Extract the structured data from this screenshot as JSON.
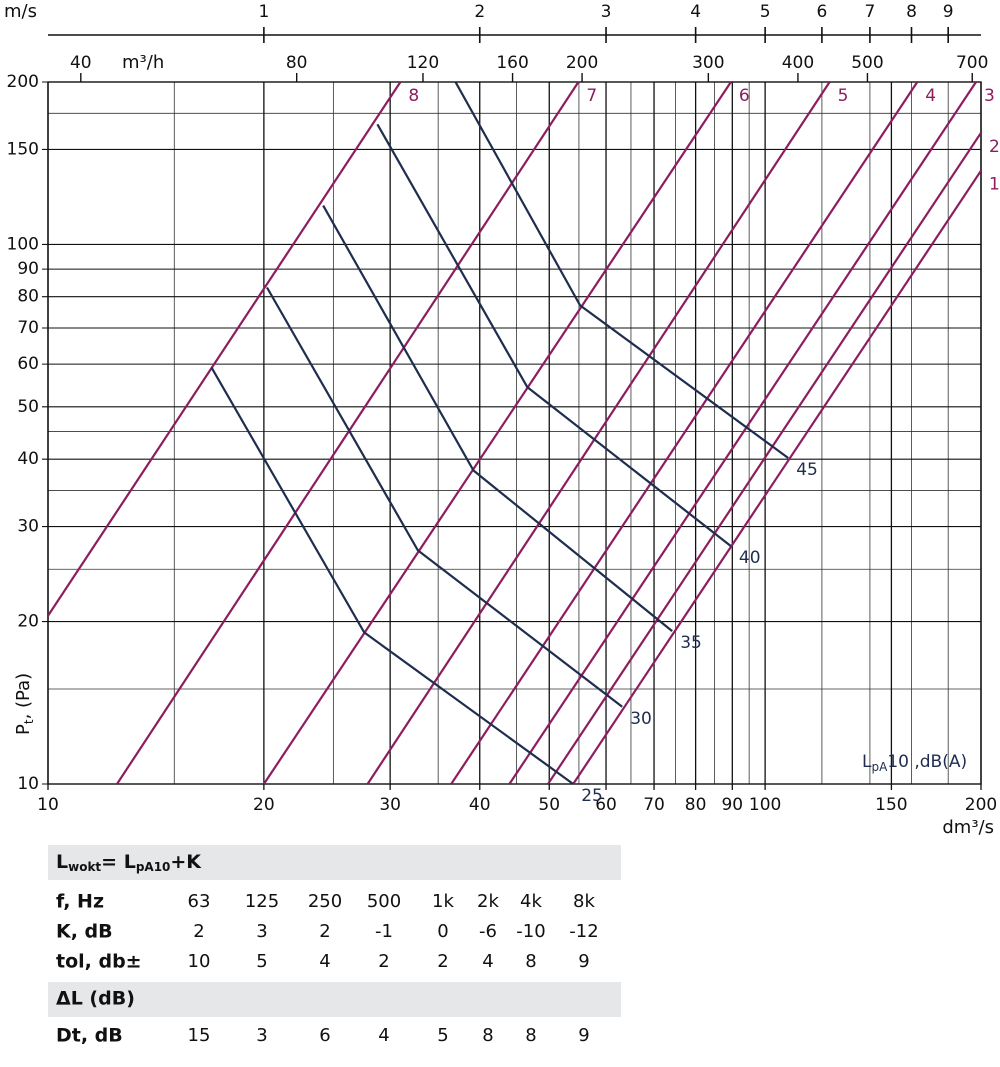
{
  "chart_data": {
    "type": "line",
    "log_x": true,
    "log_y": true,
    "grid": true,
    "xlabel": "dm³/s",
    "ylabel": [
      {
        "text": "P"
      },
      {
        "text": "t",
        "sub": true
      },
      {
        "text": ", (Pa)"
      }
    ],
    "note": [
      {
        "text": "L"
      },
      {
        "text": "pA",
        "sub": true
      },
      {
        "text": "10 ,dB(A)"
      }
    ],
    "xlim": [
      10,
      200
    ],
    "ylim": [
      10,
      200
    ],
    "xticks": [
      10,
      20,
      30,
      40,
      50,
      60,
      70,
      80,
      90,
      100,
      150,
      200
    ],
    "yticks": [
      10,
      20,
      30,
      40,
      50,
      60,
      70,
      80,
      90,
      100,
      150,
      200
    ],
    "xgrid_minor": [
      15,
      25,
      35,
      45,
      55,
      65,
      75,
      85,
      95,
      120,
      140,
      160,
      180
    ],
    "ygrid_minor": [
      15,
      25,
      35,
      45,
      175
    ],
    "top_axes": [
      {
        "label": "m/s",
        "xlim": [
          0.5,
          10
        ],
        "ticks": [
          1,
          2,
          3,
          4,
          5,
          6,
          7,
          8,
          9
        ]
      },
      {
        "label": "m³/h",
        "xlim": [
          36,
          720
        ],
        "ticks": [
          40,
          80,
          120,
          160,
          200,
          300,
          400,
          500,
          700
        ]
      }
    ],
    "series": [
      {
        "name": "8",
        "color": "#8c1d5e",
        "x": [
          10,
          31.0
        ],
        "values": [
          20.5,
          200
        ]
      },
      {
        "name": "7",
        "color": "#8c1d5e",
        "x": [
          12.48,
          54.9
        ],
        "values": [
          10,
          200
        ]
      },
      {
        "name": "6",
        "color": "#8c1d5e",
        "x": [
          20,
          89.6
        ],
        "values": [
          10,
          200
        ]
      },
      {
        "name": "5",
        "color": "#8c1d5e",
        "x": [
          27.9,
          123
        ],
        "values": [
          10,
          200
        ]
      },
      {
        "name": "4",
        "color": "#8c1d5e",
        "x": [
          36.5,
          163
        ],
        "values": [
          10,
          200
        ]
      },
      {
        "name": "3",
        "color": "#8c1d5e",
        "x": [
          44.0,
          196.8
        ],
        "values": [
          10,
          200
        ]
      },
      {
        "name": "2",
        "color": "#8c1d5e",
        "x": [
          49.8,
          200
        ],
        "values": [
          10,
          161
        ]
      },
      {
        "name": "1",
        "color": "#8c1d5e",
        "x": [
          54.0,
          200
        ],
        "values": [
          10,
          137
        ]
      },
      {
        "name": "25",
        "color": "#1f2d4f",
        "x": [
          16.9,
          27.6,
          54.0
        ],
        "values": [
          59.2,
          19.1,
          10
        ]
      },
      {
        "name": "30",
        "color": "#1f2d4f",
        "x": [
          20.2,
          32.8,
          63.2
        ],
        "values": [
          83.2,
          27.1,
          13.9
        ]
      },
      {
        "name": "35",
        "color": "#1f2d4f",
        "x": [
          24.2,
          39.2,
          74.2
        ],
        "values": [
          118,
          38.1,
          19.2
        ]
      },
      {
        "name": "40",
        "color": "#1f2d4f",
        "x": [
          28.8,
          46.6,
          89.6
        ],
        "values": [
          167,
          54.4,
          27.6
        ]
      },
      {
        "name": "45",
        "color": "#1f2d4f",
        "x": [
          37.0,
          55.2,
          107.7
        ],
        "values": [
          200,
          77.1,
          40.2
        ]
      }
    ]
  },
  "table": {
    "formula": [
      {
        "text": "L"
      },
      {
        "text": "wokt",
        "sub": true
      },
      {
        "text": "= L"
      },
      {
        "text": "pA10",
        "sub": true
      },
      {
        "text": "+K"
      }
    ],
    "rows": [
      {
        "label": "f, Hz",
        "cells": [
          "63",
          "125",
          "250",
          "500",
          "1k",
          "2k",
          "4k",
          "8k"
        ]
      },
      {
        "label": "K, dB",
        "cells": [
          2,
          3,
          2,
          -1,
          0,
          -6,
          -10,
          -12
        ]
      },
      {
        "label": "tol, db±",
        "cells": [
          10,
          5,
          4,
          2,
          2,
          4,
          8,
          9
        ]
      }
    ],
    "section2": "ΔL (dB)",
    "rows2": [
      {
        "label": "Dt, dB",
        "cells": [
          15,
          3,
          6,
          4,
          5,
          8,
          8,
          9
        ]
      }
    ]
  }
}
